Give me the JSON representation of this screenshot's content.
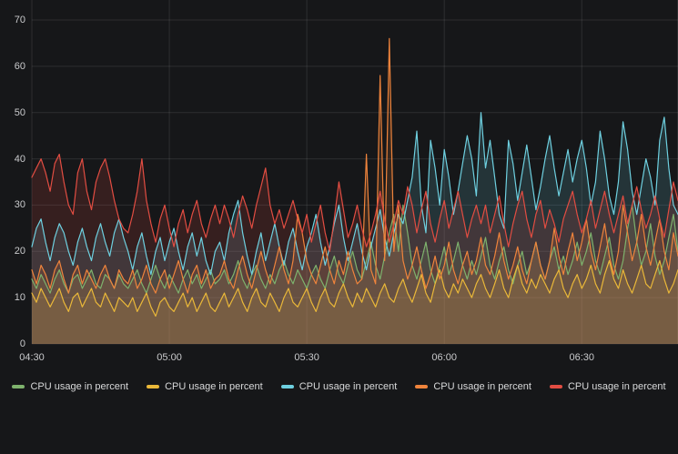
{
  "panel": {
    "background": "#161719",
    "grid_color": "rgba(255,255,255,0.10)",
    "tick_color": "#c9cacc",
    "legend_text_color": "#d8d9da"
  },
  "chart_data": {
    "type": "line",
    "title": "",
    "xlabel": "",
    "ylabel": "",
    "grid": true,
    "legend_position": "bottom",
    "fill_opacity": 0.16,
    "line_width": 1.2,
    "ylim": [
      0,
      74.3
    ],
    "y_ticks": [
      0,
      10,
      20,
      30,
      40,
      50,
      60,
      70
    ],
    "x_ticks": [
      {
        "minute": 0,
        "label": "04:30"
      },
      {
        "minute": 30,
        "label": "05:00"
      },
      {
        "minute": 60,
        "label": "05:30"
      },
      {
        "minute": 90,
        "label": "06:00"
      },
      {
        "minute": 120,
        "label": "06:30"
      }
    ],
    "x_start": "04:30",
    "x_step_minutes": 1,
    "x_total_points": 142,
    "series": [
      {
        "name": "CPU usage in percent",
        "color": "#7EB26D",
        "values": [
          14,
          12,
          15,
          13,
          11,
          14,
          16,
          13,
          11,
          14,
          15,
          12,
          14,
          16,
          13,
          12,
          15,
          14,
          12,
          15,
          13,
          12,
          14,
          16,
          13,
          11,
          14,
          17,
          14,
          12,
          15,
          13,
          11,
          14,
          16,
          13,
          15,
          12,
          14,
          16,
          13,
          14,
          16,
          13,
          15,
          18,
          14,
          12,
          15,
          17,
          14,
          12,
          15,
          13,
          16,
          18,
          15,
          13,
          16,
          14,
          12,
          15,
          17,
          14,
          12,
          16,
          19,
          15,
          13,
          17,
          20,
          16,
          14,
          18,
          22,
          17,
          14,
          19,
          24,
          28,
          20,
          30,
          24,
          17,
          14,
          18,
          22,
          16,
          13,
          17,
          21,
          15,
          18,
          22,
          17,
          14,
          18,
          15,
          19,
          23,
          17,
          14,
          18,
          21,
          16,
          13,
          17,
          20,
          15,
          18,
          22,
          17,
          14,
          18,
          21,
          16,
          19,
          15,
          18,
          22,
          17,
          20,
          24,
          18,
          15,
          19,
          23,
          17,
          14,
          18,
          25,
          30,
          22,
          17,
          20,
          26,
          19,
          15,
          18,
          23,
          28,
          20
        ]
      },
      {
        "name": "CPU usage in percent",
        "color": "#EAB839",
        "values": [
          11,
          9,
          12,
          10,
          8,
          10,
          12,
          9,
          7,
          10,
          11,
          8,
          10,
          12,
          9,
          8,
          11,
          9,
          7,
          10,
          9,
          8,
          10,
          7,
          9,
          11,
          8,
          6,
          9,
          10,
          8,
          7,
          9,
          11,
          8,
          10,
          7,
          9,
          11,
          8,
          7,
          9,
          11,
          8,
          10,
          12,
          9,
          7,
          10,
          12,
          9,
          8,
          11,
          9,
          7,
          10,
          12,
          9,
          8,
          10,
          12,
          9,
          7,
          10,
          12,
          9,
          8,
          11,
          13,
          10,
          8,
          11,
          9,
          12,
          10,
          8,
          11,
          13,
          10,
          9,
          12,
          14,
          11,
          9,
          12,
          15,
          11,
          9,
          13,
          16,
          12,
          10,
          13,
          11,
          14,
          12,
          10,
          13,
          15,
          12,
          10,
          13,
          16,
          12,
          10,
          14,
          17,
          13,
          11,
          14,
          12,
          15,
          13,
          11,
          14,
          16,
          12,
          10,
          13,
          15,
          12,
          14,
          17,
          13,
          11,
          15,
          18,
          14,
          12,
          16,
          13,
          11,
          14,
          17,
          13,
          12,
          15,
          18,
          14,
          11,
          13,
          16
        ]
      },
      {
        "name": "CPU usage in percent",
        "color": "#6ED0E0",
        "values": [
          21,
          25,
          27,
          22,
          18,
          23,
          26,
          24,
          20,
          17,
          22,
          25,
          21,
          18,
          23,
          26,
          22,
          19,
          24,
          27,
          23,
          20,
          16,
          21,
          24,
          19,
          15,
          20,
          23,
          18,
          22,
          25,
          20,
          16,
          21,
          24,
          19,
          23,
          18,
          15,
          20,
          22,
          18,
          24,
          28,
          31,
          24,
          19,
          15,
          20,
          24,
          18,
          22,
          26,
          21,
          17,
          22,
          25,
          20,
          16,
          21,
          24,
          28,
          22,
          17,
          21,
          26,
          30,
          23,
          18,
          22,
          26,
          20,
          16,
          21,
          25,
          29,
          23,
          19,
          24,
          28,
          26,
          31,
          36,
          46,
          30,
          24,
          44,
          38,
          30,
          42,
          36,
          28,
          33,
          39,
          45,
          40,
          32,
          50,
          38,
          44,
          36,
          28,
          25,
          44,
          39,
          31,
          37,
          43,
          36,
          29,
          34,
          40,
          45,
          38,
          32,
          37,
          42,
          35,
          40,
          44,
          38,
          30,
          35,
          46,
          40,
          32,
          28,
          35,
          48,
          42,
          33,
          28,
          34,
          40,
          36,
          30,
          44,
          49,
          38,
          30,
          28
        ]
      },
      {
        "name": "CPU usage in percent",
        "color": "#EF843C",
        "values": [
          16,
          13,
          17,
          15,
          12,
          16,
          18,
          14,
          11,
          15,
          17,
          13,
          16,
          14,
          12,
          15,
          17,
          14,
          12,
          16,
          14,
          13,
          16,
          12,
          14,
          17,
          13,
          11,
          14,
          16,
          12,
          15,
          18,
          14,
          11,
          15,
          17,
          13,
          16,
          12,
          14,
          15,
          18,
          14,
          12,
          16,
          19,
          15,
          12,
          16,
          20,
          16,
          13,
          17,
          21,
          16,
          13,
          18,
          28,
          24,
          18,
          15,
          13,
          17,
          21,
          16,
          13,
          18,
          15,
          20,
          16,
          13,
          14,
          41,
          16,
          13,
          58,
          18,
          66,
          20,
          30,
          18,
          14,
          17,
          21,
          16,
          12,
          15,
          19,
          14,
          17,
          22,
          16,
          13,
          17,
          20,
          15,
          18,
          23,
          17,
          15,
          19,
          24,
          18,
          14,
          17,
          21,
          16,
          13,
          18,
          22,
          17,
          14,
          18,
          25,
          19,
          15,
          20,
          24,
          18,
          22,
          27,
          20,
          16,
          21,
          26,
          19,
          15,
          20,
          30,
          24,
          18,
          22,
          28,
          21,
          17,
          22,
          27,
          20,
          16,
          24,
          19
        ]
      },
      {
        "name": "CPU usage in percent",
        "color": "#E24D42",
        "values": [
          36,
          38,
          40,
          37,
          33,
          39,
          41,
          35,
          30,
          28,
          37,
          40,
          33,
          29,
          35,
          38,
          40,
          36,
          31,
          27,
          25,
          24,
          28,
          33,
          40,
          31,
          26,
          22,
          27,
          30,
          25,
          21,
          26,
          29,
          24,
          28,
          31,
          26,
          23,
          27,
          30,
          26,
          30,
          27,
          23,
          28,
          32,
          29,
          25,
          30,
          34,
          38,
          30,
          26,
          29,
          25,
          28,
          31,
          27,
          24,
          28,
          22,
          26,
          30,
          24,
          20,
          27,
          35,
          29,
          23,
          26,
          30,
          25,
          21,
          24,
          28,
          33,
          27,
          22,
          26,
          31,
          28,
          34,
          30,
          24,
          29,
          33,
          26,
          22,
          27,
          31,
          25,
          29,
          33,
          28,
          23,
          27,
          30,
          26,
          30,
          24,
          28,
          32,
          26,
          21,
          26,
          30,
          33,
          27,
          23,
          28,
          31,
          25,
          29,
          26,
          22,
          27,
          30,
          33,
          28,
          24,
          27,
          31,
          25,
          29,
          33,
          28,
          24,
          28,
          32,
          26,
          30,
          34,
          29,
          25,
          28,
          32,
          27,
          23,
          29,
          35,
          31
        ]
      }
    ]
  }
}
